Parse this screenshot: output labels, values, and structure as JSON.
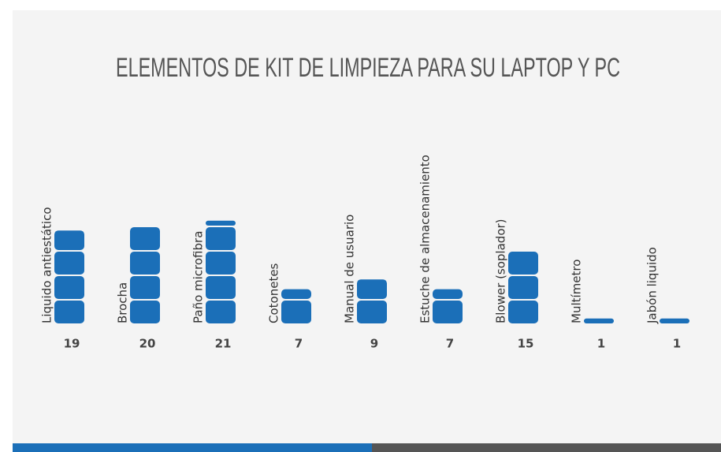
{
  "chart_data": {
    "type": "bar",
    "title": "ELEMENTOS DE KIT DE LIMPIEZA PARA SU LAPTOP Y PC",
    "categories": [
      "Liquido antiestático",
      "Brocha",
      "Paño microfibra",
      "Cotonetes",
      "Manual de usuario",
      "Estuche de almacenamiento",
      "Blower (soplador)",
      "Multímetro",
      "Jabón liquido"
    ],
    "values": [
      19,
      20,
      21,
      7,
      9,
      7,
      15,
      1,
      1
    ],
    "color": "#1b6fb8"
  }
}
